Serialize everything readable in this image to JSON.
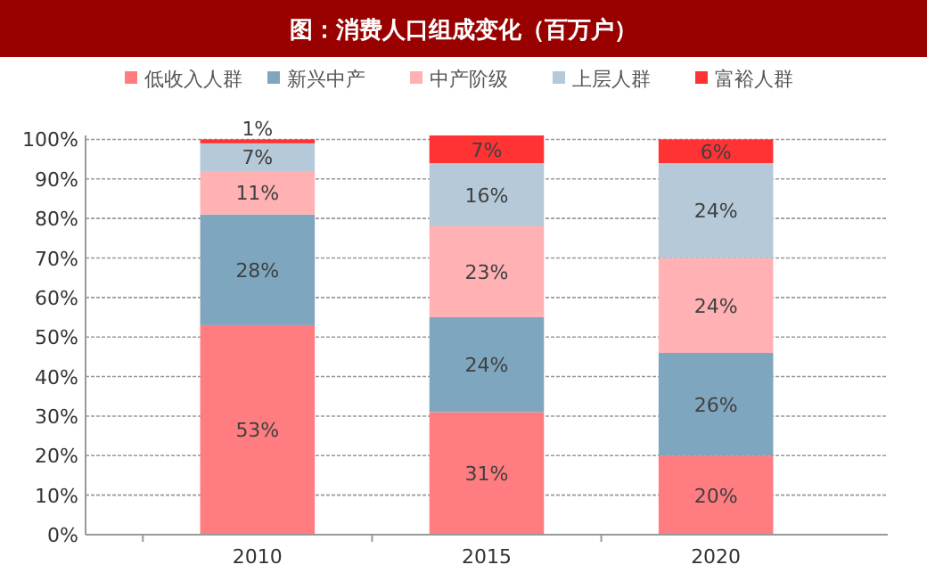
{
  "chart_data": {
    "type": "bar",
    "title": "图：消费人口组成变化（百万户）",
    "categories": [
      "2010",
      "2015",
      "2020"
    ],
    "stacked": true,
    "legend": "top",
    "grid": "y",
    "ylim": [
      0,
      101
    ],
    "yticks": [
      {
        "value": 0,
        "label": "0%"
      },
      {
        "value": 10,
        "label": "10%"
      },
      {
        "value": 20,
        "label": "20%"
      },
      {
        "value": 30,
        "label": "30%"
      },
      {
        "value": 40,
        "label": "40%"
      },
      {
        "value": 50,
        "label": "50%"
      },
      {
        "value": 60,
        "label": "60%"
      },
      {
        "value": 70,
        "label": "70%"
      },
      {
        "value": 80,
        "label": "80%"
      },
      {
        "value": 90,
        "label": "90%"
      },
      {
        "value": 100,
        "label": "100%"
      }
    ],
    "series": [
      {
        "name": "低收入人群",
        "color": "#ff7c80",
        "values": [
          53,
          31,
          20
        ],
        "value_labels": [
          "53%",
          "31%",
          "20%"
        ]
      },
      {
        "name": "新兴中产",
        "color": "#7fa6bf",
        "values": [
          28,
          24,
          26
        ],
        "value_labels": [
          "28%",
          "24%",
          "26%"
        ]
      },
      {
        "name": "中产阶级",
        "color": "#ffb1b3",
        "values": [
          11,
          23,
          24
        ],
        "value_labels": [
          "11%",
          "23%",
          "24%"
        ]
      },
      {
        "name": "上层人群",
        "color": "#b5c9d8",
        "values": [
          7,
          16,
          24
        ],
        "value_labels": [
          "7%",
          "16%",
          "24%"
        ]
      },
      {
        "name": "富裕人群",
        "color": "#ff3334",
        "values": [
          1,
          7,
          6
        ],
        "value_labels": [
          "1%",
          "7%",
          "6%"
        ]
      }
    ]
  }
}
